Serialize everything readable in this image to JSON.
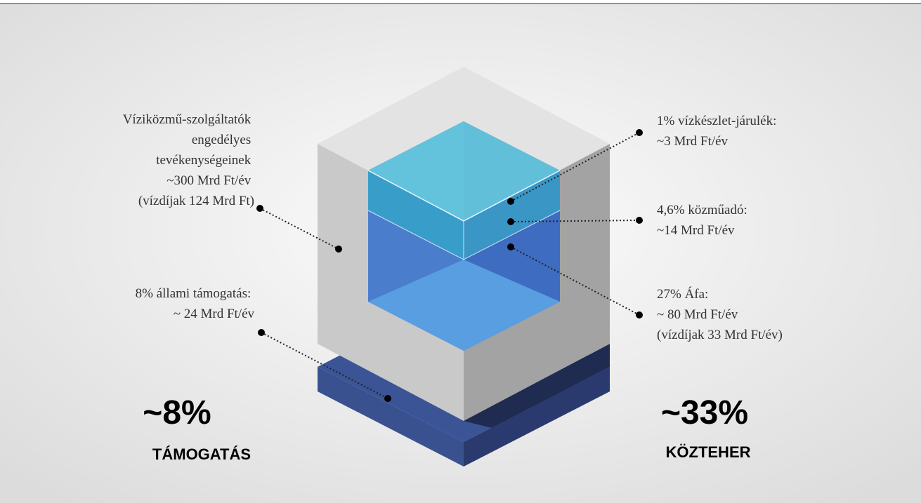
{
  "callouts": {
    "operator": {
      "lines": [
        "Víziközmű-szolgáltatók",
        "engedélyes",
        "tevékenységeinek",
        "~300 Mrd Ft/év",
        "(vízdíjak 124 Mrd Ft)"
      ]
    },
    "subsidy": {
      "lines": [
        "8% állami támogatás:",
        "~ 24 Mrd Ft/év"
      ]
    },
    "water_levy": {
      "lines": [
        "1% vízkészlet-járulék:",
        "~3 Mrd Ft/év"
      ]
    },
    "utility_tax": {
      "lines": [
        "4,6% közműadó:",
        "~14 Mrd Ft/év"
      ]
    },
    "vat": {
      "lines": [
        "27% Áfa:",
        "~ 80 Mrd Ft/év",
        "(vízdíjak 33 Mrd Ft/év)"
      ]
    }
  },
  "summary": {
    "left": {
      "value": "~8%",
      "label": "TÁMOGATÁS"
    },
    "right": {
      "value": "~33%",
      "label": "KÖZTEHER"
    }
  }
}
